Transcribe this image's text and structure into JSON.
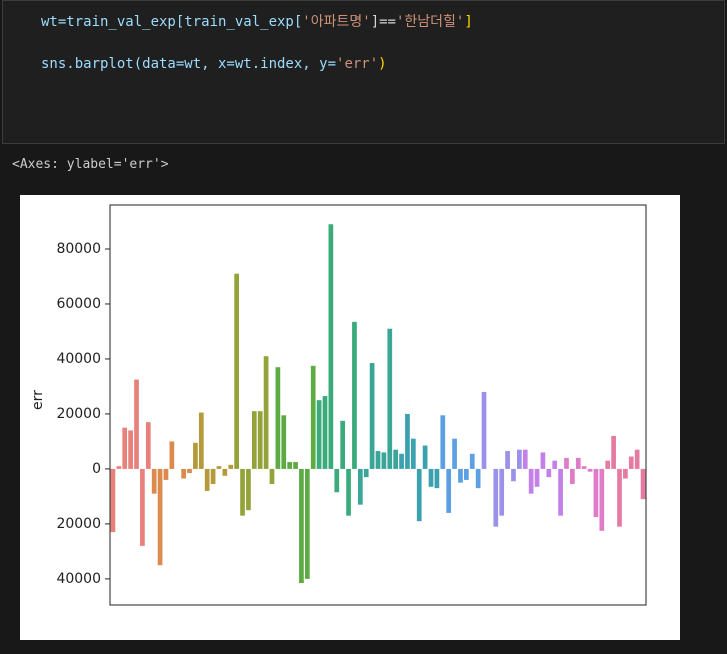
{
  "code": {
    "lines": [
      [
        {
          "text": "wt=train_val_exp[train_val_exp[",
          "color": "#9cdcfe"
        },
        {
          "text": "'아파트명'",
          "color": "#ce9178"
        },
        {
          "text": "]==",
          "color": "#d4d4d4"
        },
        {
          "text": "'한남더힐'",
          "color": "#ce9178"
        },
        {
          "text": "]",
          "color": "#ffd700"
        }
      ],
      [
        {
          "text": "sns.barplot(data=wt, x=wt.index, y=",
          "color": "#9cdcfe"
        },
        {
          "text": "'err'",
          "color": "#ce9178"
        },
        {
          "text": ")",
          "color": "#ffd700"
        }
      ]
    ]
  },
  "output": "<Axes: ylabel='err'>",
  "chart_data": {
    "type": "bar",
    "ylabel": "err",
    "categories": [
      null,
      null,
      null,
      null,
      null,
      null,
      null,
      null,
      null,
      null,
      null,
      null,
      null,
      null,
      null,
      null,
      null,
      null,
      null,
      null,
      null,
      null,
      null,
      null,
      null,
      null,
      null,
      null,
      null,
      null,
      null,
      null,
      null,
      null,
      null,
      null,
      null,
      null,
      null,
      null,
      null,
      null,
      null,
      null,
      null,
      null,
      null,
      null,
      null,
      null,
      null,
      null,
      null,
      null,
      null,
      null,
      null,
      null,
      null,
      null,
      null,
      null,
      null,
      null,
      null,
      null,
      null,
      null,
      null,
      null,
      null,
      null,
      null,
      null,
      null,
      null,
      null,
      null,
      null,
      null,
      null,
      null,
      null,
      null,
      null,
      null,
      null,
      null,
      null,
      null,
      null
    ],
    "values": [
      -23000,
      1000,
      15000,
      14000,
      32500,
      -28000,
      17000,
      -9000,
      -35000,
      -4000,
      10000,
      0,
      -3500,
      -1500,
      9500,
      20500,
      -8000,
      -5500,
      1000,
      -2500,
      1500,
      71000,
      -17000,
      -15000,
      21000,
      21000,
      41000,
      -5500,
      37000,
      19500,
      2500,
      2500,
      -41500,
      -40000,
      37500,
      25000,
      26500,
      89000,
      -8500,
      17500,
      -17000,
      53500,
      -13000,
      -3000,
      38500,
      6500,
      6000,
      51000,
      7000,
      5500,
      20000,
      11000,
      -19000,
      8500,
      -6500,
      -7000,
      19500,
      -16000,
      11000,
      -5000,
      -4000,
      5500,
      -7000,
      28000,
      0,
      -21000,
      -17000,
      6500,
      -4500,
      7000,
      7000,
      -9000,
      -6500,
      6000,
      -3000,
      3000,
      -17000,
      4000,
      -5500,
      4000,
      1000,
      -1000,
      -17500,
      -22500,
      3000,
      12000,
      -21000,
      -3500,
      4500,
      7000,
      -11000
    ],
    "colors": [
      "#e8817c",
      "#e8817c",
      "#e8817c",
      "#e8817c",
      "#e8817c",
      "#e8817c",
      "#e8817c",
      "#dc8a4e",
      "#dc8a4e",
      "#dc8a4e",
      "#dc8a4e",
      "#dc8a4e",
      "#dc8a4e",
      "#dc8a4e",
      "#b59a3b",
      "#b59a3b",
      "#b59a3b",
      "#b59a3b",
      "#b59a3b",
      "#b59a3b",
      "#b59a3b",
      "#93a33a",
      "#93a33a",
      "#93a33a",
      "#93a33a",
      "#93a33a",
      "#93a33a",
      "#93a33a",
      "#5eab45",
      "#5eab45",
      "#5eab45",
      "#5eab45",
      "#5eab45",
      "#5eab45",
      "#5eab45",
      "#3cab7c",
      "#3cab7c",
      "#3cab7c",
      "#3cab7c",
      "#3cab7c",
      "#3cab7c",
      "#3cab7c",
      "#3ba598",
      "#3ba598",
      "#3ba598",
      "#3ba598",
      "#3ba598",
      "#3ba598",
      "#3ba598",
      "#3ca1ae",
      "#3ca1ae",
      "#3ca1ae",
      "#3ca1ae",
      "#3ca1ae",
      "#3ca1ae",
      "#3ca1ae",
      "#5c9fe2",
      "#5c9fe2",
      "#5c9fe2",
      "#5c9fe2",
      "#5c9fe2",
      "#5c9fe2",
      "#5c9fe2",
      "#9c91e8",
      "#9c91e8",
      "#9c91e8",
      "#9c91e8",
      "#9c91e8",
      "#9c91e8",
      "#9c91e8",
      "#c380e6",
      "#c380e6",
      "#c380e6",
      "#c380e6",
      "#c380e6",
      "#c380e6",
      "#c380e6",
      "#e07bc8",
      "#e07bc8",
      "#e07bc8",
      "#e07bc8",
      "#e07bc8",
      "#e07bc8",
      "#e07bc8",
      "#e67ba2",
      "#e67ba2",
      "#e67ba2",
      "#e67ba2",
      "#e67ba2",
      "#e67ba2",
      "#e67ba2"
    ],
    "ylim": [
      -49500,
      96000
    ],
    "yticks": [
      {
        "value": -40000,
        "label": "40000"
      },
      {
        "value": -20000,
        "label": "20000"
      },
      0,
      20000,
      40000,
      60000,
      80000
    ]
  }
}
